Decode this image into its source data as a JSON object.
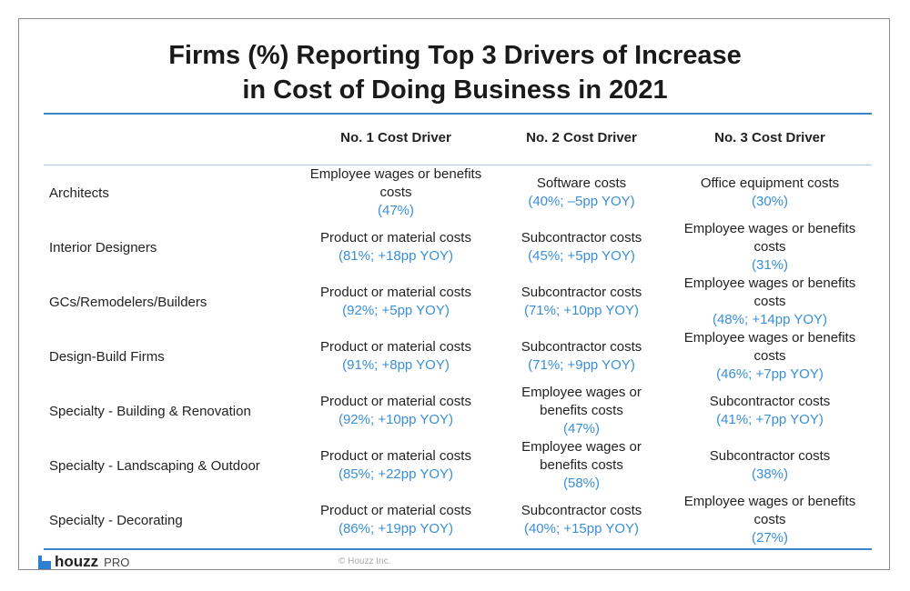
{
  "title": [
    "Firms (%) Reporting Top 3 Drivers of Increase",
    "in Cost of Doing Business in 2021"
  ],
  "headers": [
    "No. 1 Cost Driver",
    "No. 2 Cost Driver",
    "No. 3 Cost Driver"
  ],
  "rows": [
    {
      "label": "Architects",
      "cells": [
        {
          "text": [
            "Employee wages or benefits",
            "costs"
          ],
          "pct": "(47%)"
        },
        {
          "text": [
            "Software costs"
          ],
          "pct": "(40%; –5pp YOY)"
        },
        {
          "text": [
            "Office equipment costs"
          ],
          "pct": "(30%)"
        }
      ]
    },
    {
      "label": "Interior Designers",
      "cells": [
        {
          "text": [
            "Product or material costs"
          ],
          "pct": "(81%; +18pp YOY)"
        },
        {
          "text": [
            "Subcontractor costs"
          ],
          "pct": "(45%; +5pp YOY)"
        },
        {
          "text": [
            "Employee wages or benefits",
            "costs"
          ],
          "pct": "(31%)"
        }
      ]
    },
    {
      "label": "GCs/Remodelers/Builders",
      "cells": [
        {
          "text": [
            "Product or material costs"
          ],
          "pct": "(92%; +5pp YOY)"
        },
        {
          "text": [
            "Subcontractor costs"
          ],
          "pct": "(71%; +10pp YOY)"
        },
        {
          "text": [
            "Employee wages or benefits",
            "costs"
          ],
          "pct": "(48%; +14pp YOY)"
        }
      ]
    },
    {
      "label": "Design-Build Firms",
      "cells": [
        {
          "text": [
            "Product or material costs"
          ],
          "pct": "(91%; +8pp YOY)"
        },
        {
          "text": [
            "Subcontractor costs"
          ],
          "pct": "(71%; +9pp YOY)"
        },
        {
          "text": [
            "Employee wages or benefits",
            "costs"
          ],
          "pct": "(46%; +7pp YOY)"
        }
      ]
    },
    {
      "label": "Specialty - Building & Renovation",
      "cells": [
        {
          "text": [
            "Product or material costs"
          ],
          "pct": "(92%; +10pp YOY)"
        },
        {
          "text": [
            "Employee wages or",
            "benefits costs"
          ],
          "pct": "(47%)"
        },
        {
          "text": [
            "Subcontractor costs"
          ],
          "pct": "(41%; +7pp YOY)"
        }
      ]
    },
    {
      "label": "Specialty - Landscaping & Outdoor",
      "cells": [
        {
          "text": [
            "Product or material costs"
          ],
          "pct": "(85%; +22pp YOY)"
        },
        {
          "text": [
            "Employee wages or",
            "benefits costs"
          ],
          "pct": "(58%)"
        },
        {
          "text": [
            "Subcontractor costs"
          ],
          "pct": "(38%)"
        }
      ]
    },
    {
      "label": "Specialty - Decorating",
      "cells": [
        {
          "text": [
            "Product or material costs"
          ],
          "pct": "(86%; +19pp YOY)"
        },
        {
          "text": [
            "Subcontractor costs"
          ],
          "pct": "(40%; +15pp YOY)"
        },
        {
          "text": [
            "Employee wages or benefits",
            "costs"
          ],
          "pct": "(27%)"
        }
      ]
    }
  ],
  "footer": {
    "logo_text": "houzz",
    "logo_suffix": "PRO",
    "copyright": "© Houzz Inc."
  },
  "colors": {
    "accent": "#3d86c6",
    "pct": "#3a8fd6"
  }
}
